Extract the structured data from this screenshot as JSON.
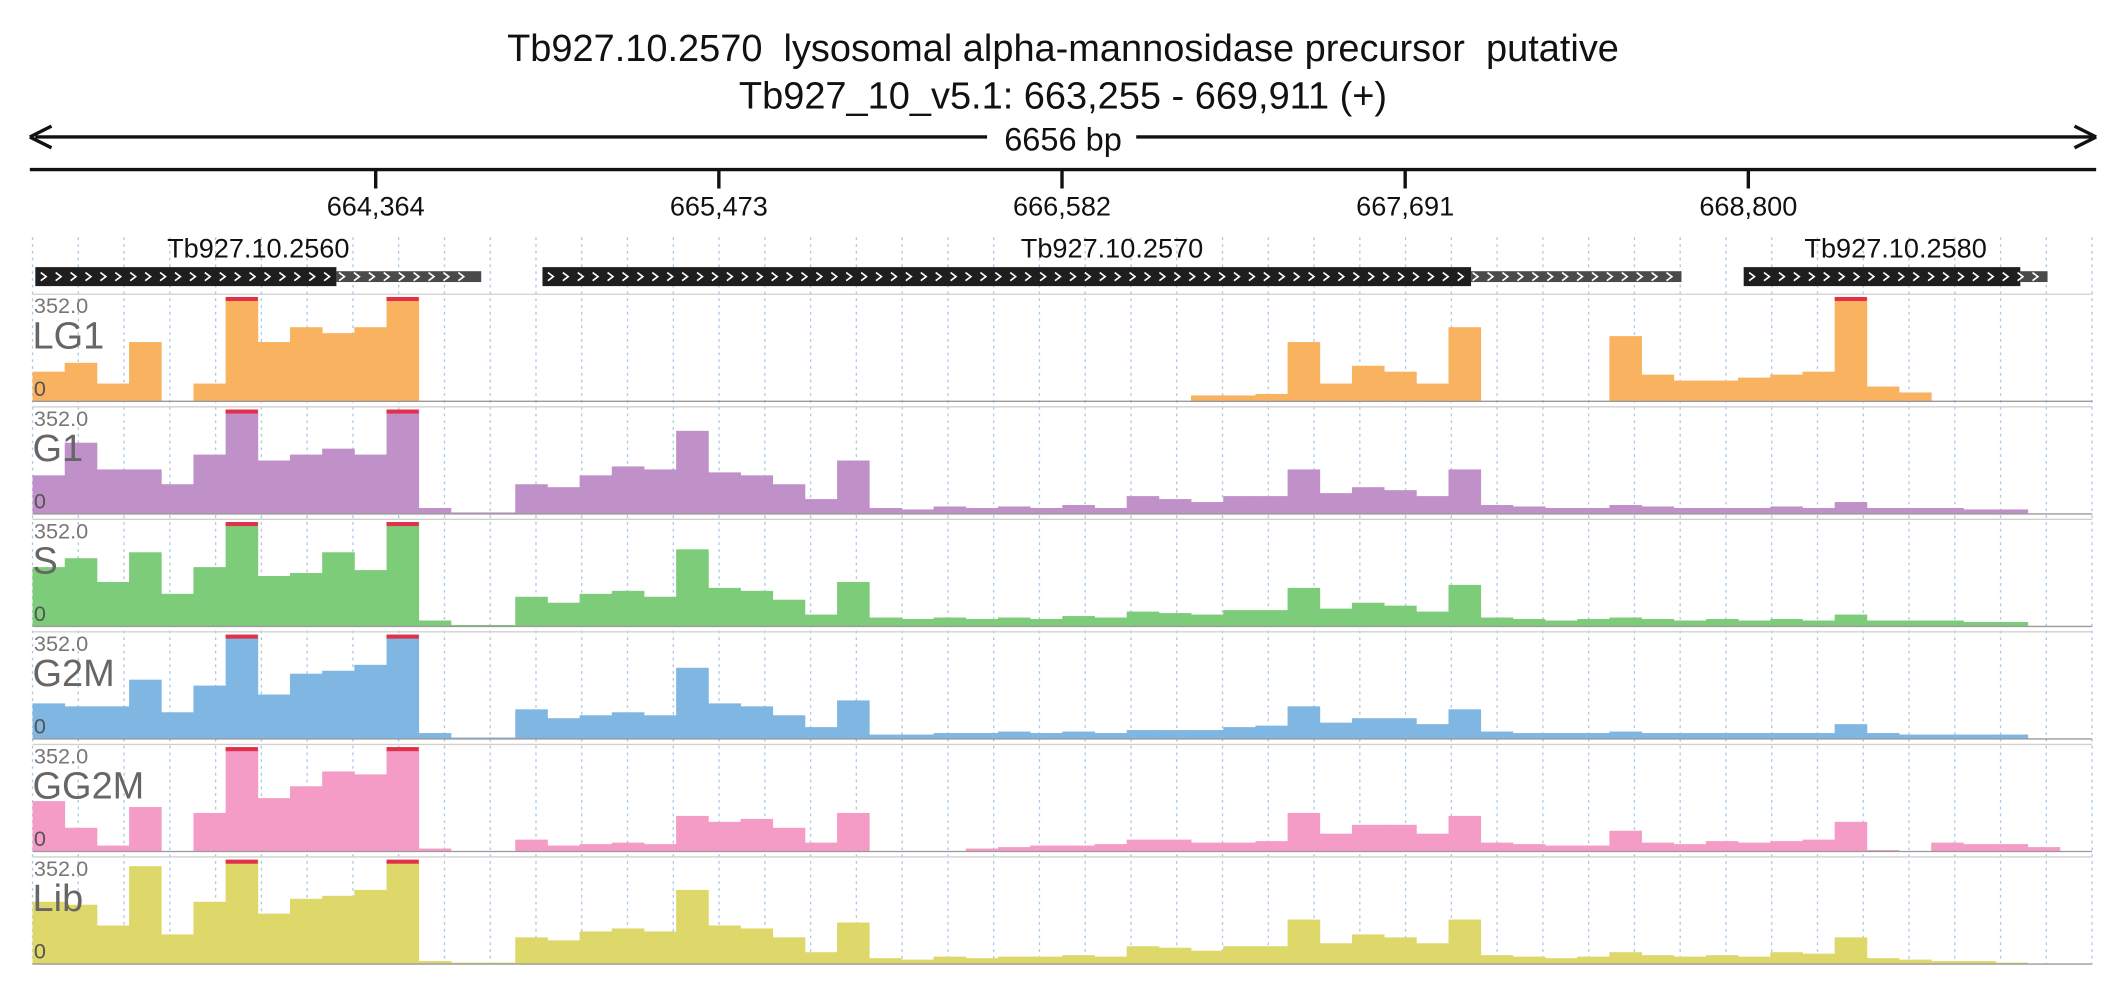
{
  "title": "Tb927.10.2570  lysosomal alpha-mannosidase precursor  putative",
  "locus": "Tb927_10_v5.1: 663,255 - 669,911 (+)",
  "region": {
    "start": 663255,
    "end": 669911
  },
  "span_label": "6656 bp",
  "ruler_ticks": [
    {
      "value": 664364,
      "label": "664,364"
    },
    {
      "value": 665473,
      "label": "665,473"
    },
    {
      "value": 666582,
      "label": "666,582"
    },
    {
      "value": 667691,
      "label": "667,691"
    },
    {
      "value": 668800,
      "label": "668,800"
    }
  ],
  "genes": [
    {
      "name": "Tb927.10.2560",
      "start": 663264,
      "cds_end": 664237,
      "end": 664705
    },
    {
      "name": "Tb927.10.2570",
      "start": 664903,
      "cds_end": 667904,
      "end": 668584
    },
    {
      "name": "Tb927.10.2580",
      "start": 668785,
      "cds_end": 669679,
      "end": 669767
    }
  ],
  "tracks": [
    {
      "name": "LG1",
      "color": "#f9b260",
      "range": {
        "value": 352,
        "label": "352.0"
      },
      "min": 0,
      "coverage": [
        100,
        130,
        60,
        200,
        0,
        60,
        352,
        200,
        250,
        230,
        250,
        352,
        0,
        0,
        0,
        0,
        0,
        0,
        0,
        0,
        0,
        0,
        0,
        0,
        0,
        0,
        0,
        0,
        0,
        0,
        0,
        0,
        0,
        0,
        0,
        0,
        20,
        20,
        25,
        200,
        60,
        120,
        100,
        60,
        250,
        0,
        0,
        0,
        0,
        220,
        90,
        70,
        70,
        80,
        90,
        100,
        352,
        50,
        30,
        0,
        0,
        0,
        0,
        0
      ]
    },
    {
      "name": "G1",
      "color": "#c090c8",
      "range": {
        "value": 352,
        "label": "352.0"
      },
      "min": 0,
      "coverage": [
        130,
        240,
        150,
        150,
        100,
        200,
        352,
        180,
        200,
        220,
        200,
        352,
        20,
        5,
        5,
        100,
        90,
        130,
        160,
        150,
        280,
        140,
        130,
        100,
        50,
        180,
        20,
        15,
        25,
        20,
        25,
        20,
        30,
        20,
        60,
        50,
        40,
        60,
        60,
        150,
        70,
        90,
        80,
        60,
        150,
        30,
        25,
        20,
        20,
        30,
        25,
        20,
        20,
        20,
        25,
        20,
        40,
        20,
        20,
        20,
        15,
        15,
        0,
        0
      ]
    },
    {
      "name": "S",
      "color": "#7dcc7a",
      "range": {
        "value": 352,
        "label": "352.0"
      },
      "min": 0,
      "coverage": [
        200,
        230,
        150,
        250,
        110,
        200,
        352,
        170,
        180,
        250,
        190,
        352,
        20,
        5,
        5,
        100,
        80,
        110,
        120,
        100,
        260,
        130,
        120,
        90,
        40,
        150,
        30,
        25,
        30,
        25,
        30,
        25,
        35,
        30,
        50,
        45,
        40,
        55,
        55,
        130,
        60,
        80,
        70,
        50,
        140,
        30,
        25,
        20,
        25,
        30,
        25,
        20,
        25,
        20,
        25,
        20,
        40,
        20,
        20,
        20,
        15,
        15,
        0,
        0
      ]
    },
    {
      "name": "G2M",
      "color": "#80b6e2",
      "range": {
        "value": 352,
        "label": "352.0"
      },
      "min": 0,
      "coverage": [
        120,
        110,
        110,
        200,
        90,
        180,
        352,
        150,
        220,
        230,
        250,
        352,
        20,
        5,
        5,
        100,
        70,
        80,
        90,
        80,
        240,
        120,
        110,
        80,
        40,
        130,
        15,
        15,
        20,
        20,
        25,
        20,
        25,
        20,
        30,
        30,
        30,
        40,
        45,
        110,
        55,
        70,
        70,
        50,
        100,
        25,
        20,
        20,
        20,
        25,
        20,
        20,
        20,
        20,
        20,
        20,
        50,
        20,
        15,
        15,
        15,
        15,
        0,
        0
      ]
    },
    {
      "name": "GG2M",
      "color": "#f59cc6",
      "range": {
        "value": 352,
        "label": "352.0"
      },
      "min": 0,
      "coverage": [
        170,
        80,
        20,
        150,
        0,
        130,
        352,
        180,
        220,
        270,
        260,
        352,
        10,
        0,
        0,
        40,
        20,
        25,
        30,
        25,
        120,
        100,
        110,
        80,
        30,
        130,
        0,
        0,
        0,
        10,
        15,
        20,
        20,
        25,
        40,
        40,
        30,
        30,
        35,
        130,
        60,
        90,
        90,
        60,
        120,
        30,
        25,
        20,
        20,
        70,
        30,
        25,
        35,
        30,
        35,
        40,
        100,
        5,
        0,
        30,
        25,
        25,
        15,
        0
      ]
    },
    {
      "name": "Lib",
      "color": "#ded86a",
      "range": {
        "value": 352,
        "label": "352.0"
      },
      "min": 0,
      "coverage": [
        210,
        200,
        130,
        330,
        100,
        210,
        352,
        170,
        220,
        230,
        250,
        352,
        10,
        5,
        5,
        90,
        80,
        110,
        120,
        110,
        250,
        130,
        120,
        90,
        40,
        140,
        20,
        15,
        25,
        20,
        25,
        25,
        30,
        25,
        60,
        55,
        45,
        60,
        60,
        150,
        70,
        100,
        90,
        70,
        150,
        30,
        25,
        20,
        25,
        40,
        30,
        25,
        30,
        25,
        40,
        35,
        90,
        20,
        15,
        10,
        10,
        5,
        0,
        0
      ]
    }
  ]
}
